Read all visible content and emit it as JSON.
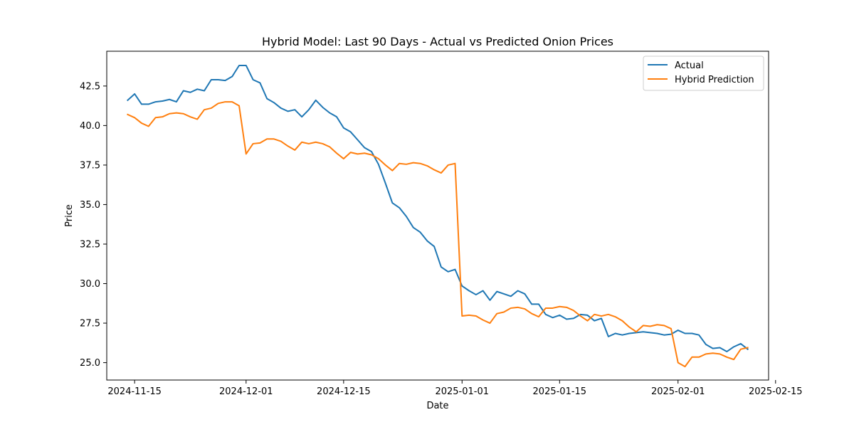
{
  "chart_data": {
    "type": "line",
    "title": "Hybrid Model: Last 90 Days - Actual vs Predicted Onion Prices",
    "xlabel": "Date",
    "ylabel": "Price",
    "x_start": "2024-11-14",
    "xlim": [
      "2024-11-11",
      "2025-02-14"
    ],
    "ylim": [
      23.9,
      44.7
    ],
    "x_ticks": [
      "2024-11-15",
      "2024-12-01",
      "2024-12-15",
      "2025-01-01",
      "2025-01-15",
      "2025-02-01",
      "2025-02-15"
    ],
    "y_ticks": [
      25.0,
      27.5,
      30.0,
      32.5,
      35.0,
      37.5,
      40.0,
      42.5
    ],
    "grid": false,
    "legend_position": "top-right",
    "series": [
      {
        "name": "Actual",
        "color": "#1f77b4",
        "values": [
          41.6,
          42.0,
          41.35,
          41.35,
          41.5,
          41.55,
          41.65,
          41.5,
          42.2,
          42.1,
          42.3,
          42.2,
          42.9,
          42.9,
          42.85,
          43.1,
          43.8,
          43.8,
          42.9,
          42.7,
          41.7,
          41.45,
          41.1,
          40.9,
          41.0,
          40.55,
          41.0,
          41.6,
          41.15,
          40.8,
          40.55,
          39.85,
          39.6,
          39.1,
          38.6,
          38.35,
          37.55,
          36.35,
          35.1,
          34.8,
          34.25,
          33.55,
          33.25,
          32.7,
          32.35,
          31.05,
          30.75,
          30.9,
          29.85,
          29.55,
          29.3,
          29.55,
          28.95,
          29.5,
          29.35,
          29.2,
          29.55,
          29.35,
          28.7,
          28.7,
          28.05,
          27.85,
          28.0,
          27.75,
          27.8,
          28.05,
          28.0,
          27.65,
          27.8,
          26.65,
          26.85,
          26.75,
          26.85,
          26.9,
          26.95,
          26.9,
          26.85,
          26.75,
          26.8,
          27.05,
          26.85,
          26.85,
          26.75,
          26.15,
          25.9,
          25.95,
          25.7,
          26.0,
          26.2,
          25.85
        ]
      },
      {
        "name": "Hybrid Prediction",
        "color": "#ff7f0e",
        "values": [
          40.7,
          40.5,
          40.15,
          39.95,
          40.5,
          40.55,
          40.75,
          40.8,
          40.75,
          40.55,
          40.4,
          41.0,
          41.1,
          41.4,
          41.5,
          41.5,
          41.25,
          38.2,
          38.85,
          38.9,
          39.15,
          39.15,
          39.0,
          38.7,
          38.45,
          38.95,
          38.85,
          38.95,
          38.85,
          38.65,
          38.25,
          37.9,
          38.3,
          38.2,
          38.25,
          38.15,
          37.9,
          37.5,
          37.15,
          37.6,
          37.55,
          37.65,
          37.6,
          37.45,
          37.2,
          37.0,
          37.5,
          37.6,
          27.95,
          28.0,
          27.95,
          27.7,
          27.5,
          28.1,
          28.2,
          28.45,
          28.5,
          28.4,
          28.1,
          27.9,
          28.45,
          28.45,
          28.55,
          28.5,
          28.3,
          27.95,
          27.65,
          28.05,
          27.95,
          28.05,
          27.9,
          27.65,
          27.25,
          26.95,
          27.35,
          27.3,
          27.4,
          27.35,
          27.15,
          25.0,
          24.75,
          25.35,
          25.35,
          25.55,
          25.6,
          25.55,
          25.35,
          25.2,
          25.85,
          25.95
        ]
      }
    ]
  }
}
